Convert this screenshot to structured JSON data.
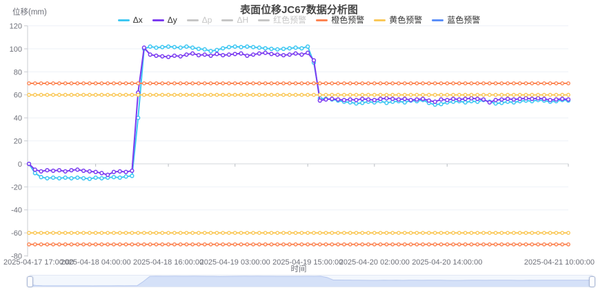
{
  "title": "表面位移JC67数据分析图",
  "colors": {
    "cyan": "#3ec7f2",
    "purple": "#7b3bf0",
    "orange": "#fc8452",
    "yellow": "#fac858",
    "blue": "#5b8ff9",
    "inactive": "#c6c6c6",
    "active_label": "#333333",
    "axis_text": "#6e7079",
    "grid_line": "#eef1f7",
    "zero_line": "#d4d7dc",
    "axis_line": "#c9ccd1",
    "title_text": "#464646",
    "dz_shadow_fill": "#d5e1f8",
    "dz_shadow_stroke": "#b7c8ee"
  },
  "legend": {
    "items": [
      {
        "label": "Δx",
        "color": "#3ec7f2",
        "active": true
      },
      {
        "label": "Δy",
        "color": "#7b3bf0",
        "active": true
      },
      {
        "label": "Δp",
        "color": "#c6c6c6",
        "active": false
      },
      {
        "label": "ΔH",
        "color": "#c6c6c6",
        "active": false
      },
      {
        "label": "红色预警",
        "color": "#c6c6c6",
        "active": false
      },
      {
        "label": "橙色预警",
        "color": "#fc8452",
        "active": true
      },
      {
        "label": "黄色预警",
        "color": "#fac858",
        "active": true
      },
      {
        "label": "蓝色预警",
        "color": "#5b8ff9",
        "active": true
      }
    ]
  },
  "chart_data": {
    "type": "line",
    "title": "表面位移JC67数据分析图",
    "ylabel": "位移(mm)",
    "xlabel": "时间",
    "ylim": [
      -80,
      120
    ],
    "y_ticks": [
      -80,
      -60,
      -40,
      -20,
      0,
      20,
      40,
      60,
      80,
      100,
      120
    ],
    "x_start": "2025-04-17 17:00:00",
    "x_interval_hours": 1,
    "x_point_count": 90,
    "x_tick_labels": [
      {
        "label": "2025-04-17 17:00:00",
        "hour": 0
      },
      {
        "label": "2025-04-18 04:00:00",
        "hour": 11
      },
      {
        "label": "2025-04-18 16:00:00",
        "hour": 23
      },
      {
        "label": "2025-04-19 03:00:00",
        "hour": 34
      },
      {
        "label": "2025-04-19 15:00:00",
        "hour": 46
      },
      {
        "label": "2025-04-20 02:00:00",
        "hour": 57
      },
      {
        "label": "2025-04-20 14:00:00",
        "hour": 69
      },
      {
        "label": "2025-04-21 10:00:00",
        "hour": 89
      }
    ],
    "grid": true,
    "legend_position": "top",
    "series": [
      {
        "name": "Δx",
        "color": "#3ec7f2",
        "values": [
          0,
          -8,
          -11.5,
          -12.5,
          -12,
          -12.5,
          -12,
          -12.5,
          -12,
          -12.5,
          -13,
          -12,
          -12.5,
          -12,
          -11.5,
          -12,
          -11,
          -10.5,
          40,
          100,
          102,
          101,
          101.5,
          102,
          101.5,
          101,
          102,
          101,
          100,
          99.5,
          98,
          99,
          100.5,
          101.5,
          102,
          101.5,
          102,
          101.5,
          101,
          100.5,
          100,
          99.5,
          100,
          100.5,
          101,
          100.5,
          102,
          88,
          57,
          56.5,
          56,
          55,
          54,
          53.5,
          52.5,
          53,
          54,
          53.5,
          54.5,
          53,
          54,
          54.5,
          53.5,
          55,
          54.5,
          55.5,
          53,
          51.5,
          52,
          53.5,
          54,
          54.5,
          53.5,
          54.5,
          54,
          55.5,
          54,
          52.5,
          53,
          54,
          53.5,
          54.5,
          55,
          54.5,
          55.5,
          55,
          54,
          54.5,
          55.5,
          55
        ]
      },
      {
        "name": "Δy",
        "color": "#7b3bf0",
        "values": [
          0,
          -5,
          -6.5,
          -5.5,
          -6,
          -5.5,
          -6.5,
          -5.5,
          -5,
          -6,
          -6.5,
          -7,
          -8,
          -9.5,
          -7,
          -6.5,
          -7,
          -6,
          62,
          101,
          95,
          94,
          93.5,
          93,
          94,
          93.5,
          95,
          96,
          94.5,
          95,
          94,
          95.5,
          94.5,
          95,
          95.5,
          96,
          94,
          95,
          96,
          96.5,
          95.5,
          95,
          94.5,
          95,
          96,
          95,
          96.5,
          90,
          55,
          56,
          56.5,
          56,
          55.5,
          56,
          55.5,
          56.5,
          56,
          55.5,
          56.5,
          57,
          56.5,
          56,
          56.5,
          55.5,
          56,
          56.5,
          55,
          54,
          56,
          55.5,
          56.5,
          56,
          56.5,
          57,
          56.5,
          56,
          53.5,
          55.5,
          56,
          56.5,
          56,
          56.5,
          57,
          56.5,
          57,
          56.5,
          55.5,
          56,
          56.5,
          56
        ]
      }
    ],
    "warning_lines": [
      {
        "name": "橙色预警",
        "color": "#fc8452",
        "values": [
          70,
          -70
        ]
      },
      {
        "name": "黄色预警",
        "color": "#fac858",
        "values": [
          60,
          -60
        ]
      },
      {
        "name": "蓝色预警",
        "color": "#5b8ff9",
        "values": []
      }
    ]
  },
  "datazoom": {
    "range_percent": [
      0,
      100
    ],
    "shadow_series": "Δx"
  }
}
